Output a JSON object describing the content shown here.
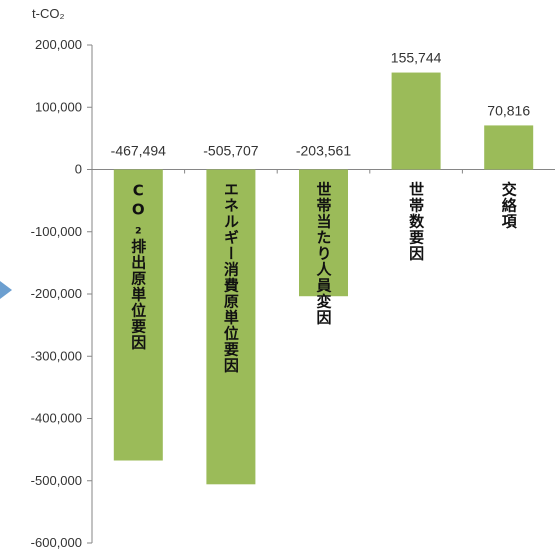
{
  "chart_data": {
    "type": "bar",
    "unit": "t-CO₂",
    "categories": [
      "CO₂排出原単位要因",
      "エネルギー消費原単位要因",
      "世帯当たり人員変因",
      "世帯数要因",
      "交絡項"
    ],
    "values": [
      -467494,
      -505707,
      -203561,
      155744,
      70816
    ],
    "value_labels": [
      "-467,494",
      "-505,707",
      "-203,561",
      "155,744",
      "70,816"
    ],
    "ylim": [
      -600000,
      200000
    ],
    "yticks": [
      200000,
      100000,
      0,
      -100000,
      -200000,
      -300000,
      -400000,
      -500000,
      -600000
    ],
    "ytick_labels": [
      "200,000",
      "100,000",
      "0",
      "-100,000",
      "-200,000",
      "-300,000",
      "-400,000",
      "-500,000",
      "-600,000"
    ],
    "grid": false,
    "colors": {
      "bar": "#9bbb59",
      "axis": "#868686",
      "marker": "#6c9fd0"
    }
  }
}
